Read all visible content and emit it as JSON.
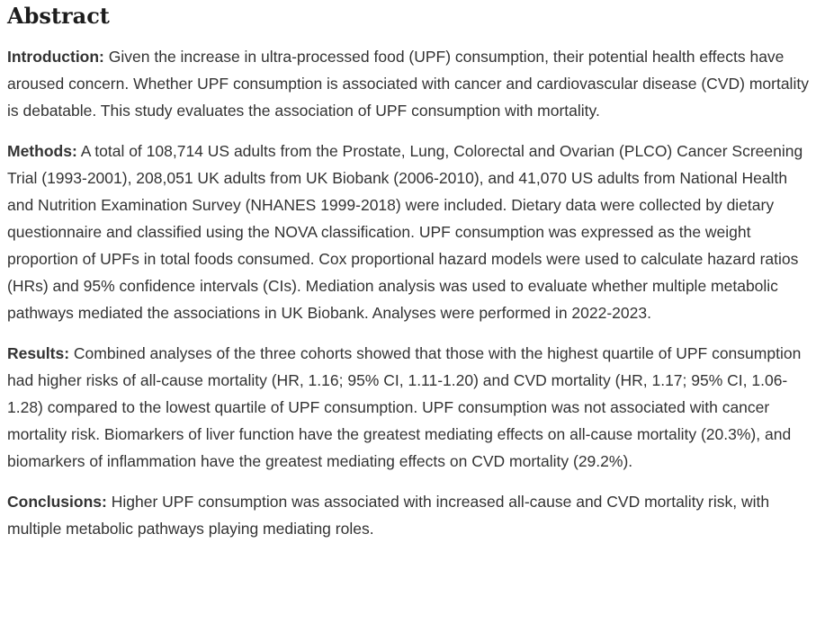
{
  "colors": {
    "background": "#ffffff",
    "heading_text": "#1c1c1c",
    "body_text": "#333333"
  },
  "abstract": {
    "heading": "Abstract",
    "sections": [
      {
        "label": "Introduction:",
        "text": "Given the increase in ultra-processed food (UPF) consumption, their potential health effects have aroused concern. Whether UPF consumption is associated with cancer and cardiovascular disease (CVD) mortality is debatable. This study evaluates the association of UPF consumption with mortality."
      },
      {
        "label": "Methods:",
        "text": "A total of 108,714 US adults from the Prostate, Lung, Colorectal and Ovarian (PLCO) Cancer Screening Trial (1993-2001), 208,051 UK adults from UK Biobank (2006-2010), and 41,070 US adults from National Health and Nutrition Examination Survey (NHANES 1999-2018) were included. Dietary data were collected by dietary questionnaire and classified using the NOVA classification. UPF consumption was expressed as the weight proportion of UPFs in total foods consumed. Cox proportional hazard models were used to calculate hazard ratios (HRs) and 95% confidence intervals (CIs). Mediation analysis was used to evaluate whether multiple metabolic pathways mediated the associations in UK Biobank. Analyses were performed in 2022-2023."
      },
      {
        "label": "Results:",
        "text": "Combined analyses of the three cohorts showed that those with the highest quartile of UPF consumption had higher risks of all-cause mortality (HR, 1.16; 95% CI, 1.11-1.20) and CVD mortality (HR, 1.17; 95% CI, 1.06-1.28) compared to the lowest quartile of UPF consumption. UPF consumption was not associated with cancer mortality risk. Biomarkers of liver function have the greatest mediating effects on all-cause mortality (20.3%), and biomarkers of inflammation have the greatest mediating effects on CVD mortality (29.2%)."
      },
      {
        "label": "Conclusions:",
        "text": "Higher UPF consumption was associated with increased all-cause and CVD mortality risk, with multiple metabolic pathways playing mediating roles."
      }
    ]
  }
}
